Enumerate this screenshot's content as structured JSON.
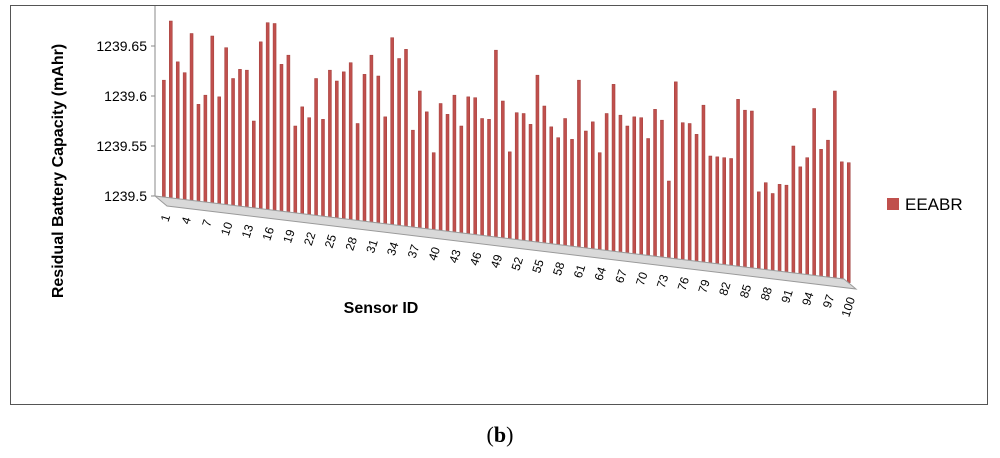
{
  "caption": {
    "open": "(",
    "letter": "b",
    "close": ")"
  },
  "chart_data": {
    "type": "bar",
    "ylabel": "Residual Battery Capacity (mAhr)",
    "xlabel": "Sensor ID",
    "ylim": [
      1239.5,
      1239.7
    ],
    "yticks": [
      "1239.5",
      "1239.55",
      "1239.6",
      "1239.65"
    ],
    "xtick_labels": [
      "1",
      "4",
      "7",
      "10",
      "13",
      "16",
      "19",
      "22",
      "25",
      "28",
      "31",
      "34",
      "37",
      "40",
      "43",
      "46",
      "49",
      "52",
      "55",
      "58",
      "61",
      "64",
      "67",
      "70",
      "73",
      "76",
      "79",
      "82",
      "85",
      "88",
      "91",
      "94",
      "97",
      "100"
    ],
    "legend_position": "right",
    "series": [
      {
        "name": "EEABR",
        "color": "#c0504d",
        "values": [
          1239.62,
          1239.68,
          1239.64,
          1239.63,
          1239.67,
          1239.6,
          1239.61,
          1239.67,
          1239.61,
          1239.66,
          1239.63,
          1239.64,
          1239.64,
          1239.59,
          1239.67,
          1239.69,
          1239.69,
          1239.65,
          1239.66,
          1239.59,
          1239.61,
          1239.6,
          1239.64,
          1239.6,
          1239.65,
          1239.64,
          1239.65,
          1239.66,
          1239.6,
          1239.65,
          1239.67,
          1239.65,
          1239.61,
          1239.69,
          1239.67,
          1239.68,
          1239.6,
          1239.64,
          1239.62,
          1239.58,
          1239.63,
          1239.62,
          1239.64,
          1239.61,
          1239.64,
          1239.64,
          1239.62,
          1239.62,
          1239.69,
          1239.64,
          1239.59,
          1239.63,
          1239.63,
          1239.62,
          1239.67,
          1239.64,
          1239.62,
          1239.61,
          1239.63,
          1239.61,
          1239.67,
          1239.62,
          1239.63,
          1239.6,
          1239.64,
          1239.67,
          1239.64,
          1239.63,
          1239.64,
          1239.64,
          1239.62,
          1239.65,
          1239.64,
          1239.58,
          1239.68,
          1239.64,
          1239.64,
          1239.63,
          1239.66,
          1239.61,
          1239.61,
          1239.61,
          1239.61,
          1239.67,
          1239.66,
          1239.66,
          1239.58,
          1239.59,
          1239.58,
          1239.59,
          1239.59,
          1239.63,
          1239.61,
          1239.62,
          1239.67,
          1239.63,
          1239.64,
          1239.69,
          1239.62,
          1239.62
        ]
      }
    ]
  }
}
